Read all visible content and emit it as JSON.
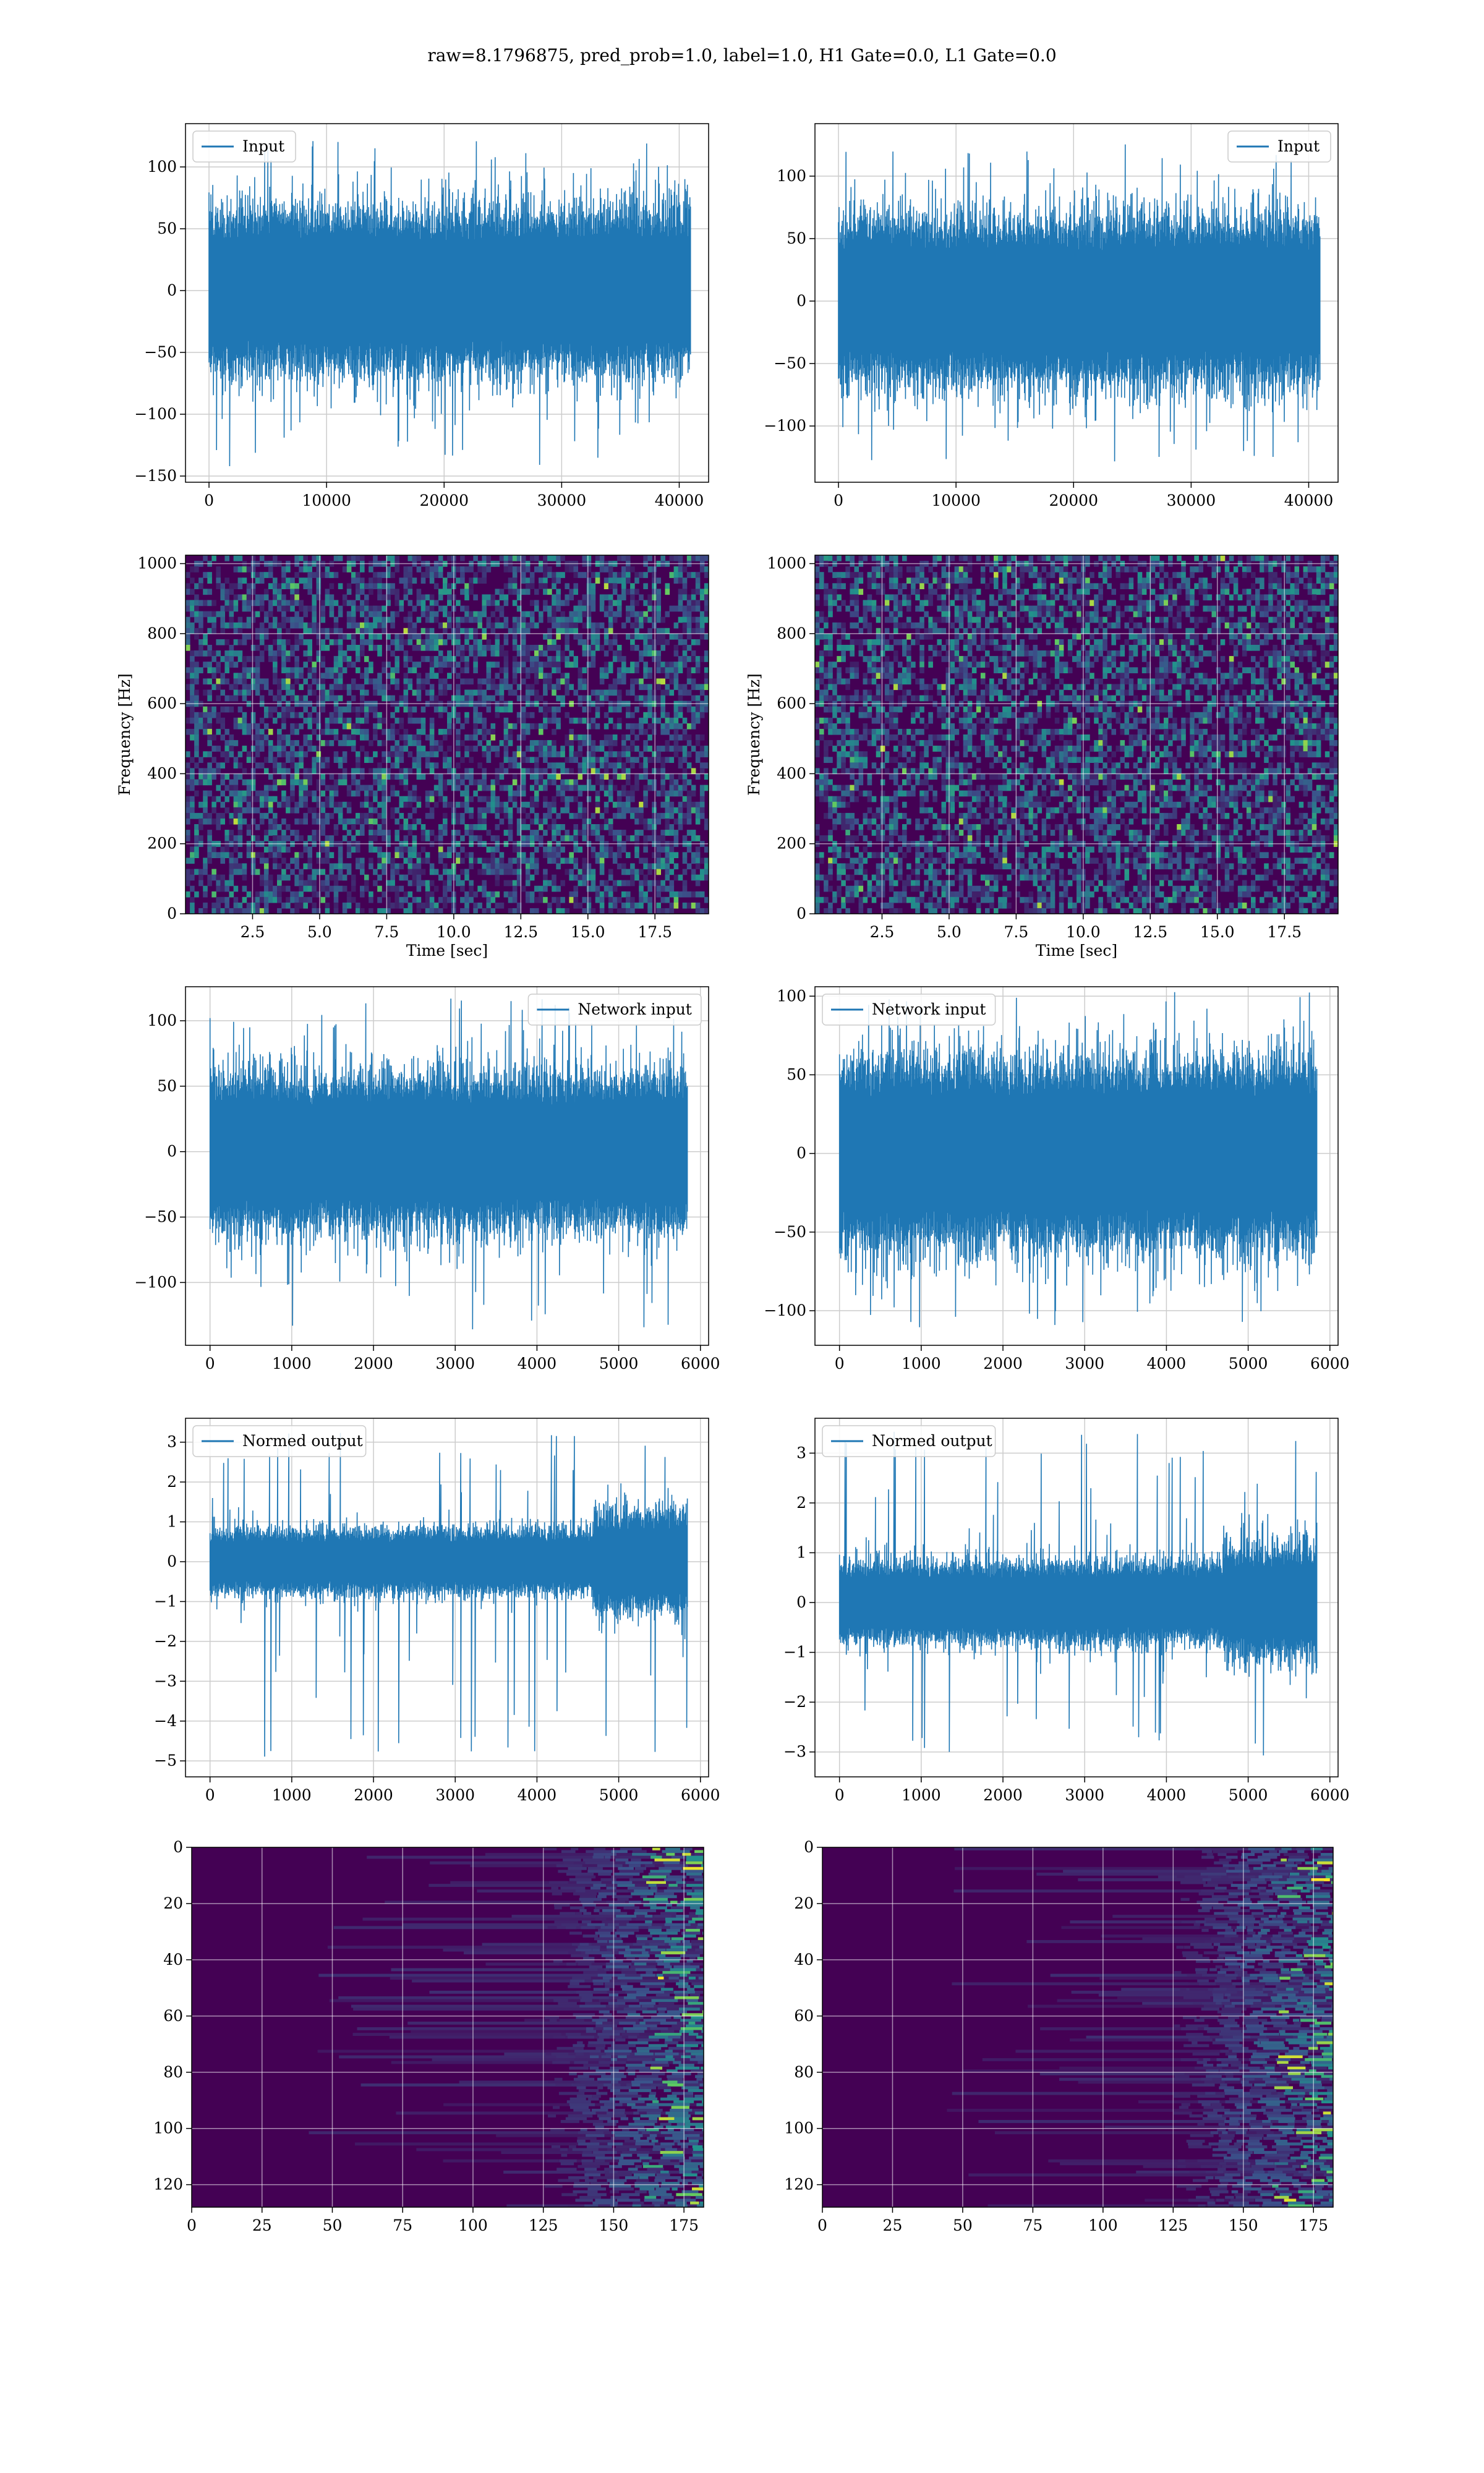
{
  "figure": {
    "suptitle": "raw=8.1796875, pred_prob=1.0, label=1.0, H1 Gate=0.0, L1 Gate=0.0"
  },
  "colors": {
    "line": "#1f77b4",
    "grid": "#cccccc",
    "heat_low": "#440154",
    "heat_mid": "#21918c",
    "heat_high": "#fde725"
  },
  "chart_data": [
    {
      "id": "input-h1",
      "type": "line",
      "series": [
        {
          "name": "Input"
        }
      ],
      "legend": "upper-left",
      "xlim": [
        -2000,
        42500
      ],
      "ylim": [
        -155,
        135
      ],
      "xticks": [
        0,
        10000,
        20000,
        30000,
        40000
      ],
      "yticks": [
        -150,
        -100,
        -50,
        0,
        50,
        100
      ],
      "signal": {
        "n": 40960,
        "x_start": 0,
        "x_end": 40960,
        "amp_typical": 62,
        "amp_peak": 122,
        "amp_min": -143
      },
      "grid": true
    },
    {
      "id": "input-l1",
      "type": "line",
      "series": [
        {
          "name": "Input"
        }
      ],
      "legend": "upper-right",
      "xlim": [
        -2000,
        42500
      ],
      "ylim": [
        -145,
        142
      ],
      "xticks": [
        0,
        10000,
        20000,
        30000,
        40000
      ],
      "yticks": [
        -100,
        -50,
        0,
        50,
        100
      ],
      "signal": {
        "n": 40960,
        "x_start": 0,
        "x_end": 40960,
        "amp_typical": 62,
        "amp_peak": 130,
        "amp_min": -130
      },
      "grid": true
    },
    {
      "id": "spectrogram-h1",
      "type": "heatmap",
      "xlabel": "Time [sec]",
      "ylabel": "Frequency [Hz]",
      "xlim": [
        0,
        19.5
      ],
      "ylim": [
        0,
        1024
      ],
      "xticks": [
        2.5,
        5.0,
        7.5,
        10.0,
        12.5,
        15.0,
        17.5
      ],
      "xtick_labels": [
        "2.5",
        "5.0",
        "7.5",
        "10.0",
        "12.5",
        "15.0",
        "17.5"
      ],
      "yticks": [
        0,
        200,
        400,
        600,
        800,
        1000
      ],
      "grid": true
    },
    {
      "id": "spectrogram-l1",
      "type": "heatmap",
      "xlabel": "Time [sec]",
      "ylabel": "Frequency [Hz]",
      "xlim": [
        0,
        19.5
      ],
      "ylim": [
        0,
        1024
      ],
      "xticks": [
        2.5,
        5.0,
        7.5,
        10.0,
        12.5,
        15.0,
        17.5
      ],
      "xtick_labels": [
        "2.5",
        "5.0",
        "7.5",
        "10.0",
        "12.5",
        "15.0",
        "17.5"
      ],
      "yticks": [
        0,
        200,
        400,
        600,
        800,
        1000
      ],
      "grid": true
    },
    {
      "id": "network-input-h1",
      "type": "line",
      "series": [
        {
          "name": "Network input"
        }
      ],
      "legend": "upper-right",
      "xlim": [
        -300,
        6100
      ],
      "ylim": [
        -148,
        126
      ],
      "xticks": [
        0,
        1000,
        2000,
        3000,
        4000,
        5000,
        6000
      ],
      "yticks": [
        -100,
        -50,
        0,
        50,
        100
      ],
      "signal": {
        "n": 5840,
        "x_start": 0,
        "x_end": 5840,
        "amp_typical": 55,
        "amp_peak": 118,
        "amp_min": -136
      },
      "grid": true
    },
    {
      "id": "network-input-l1",
      "type": "line",
      "series": [
        {
          "name": "Network input"
        }
      ],
      "legend": "upper-left",
      "xlim": [
        -300,
        6100
      ],
      "ylim": [
        -122,
        106
      ],
      "xticks": [
        0,
        1000,
        2000,
        3000,
        4000,
        5000,
        6000
      ],
      "yticks": [
        -100,
        -50,
        0,
        50,
        100
      ],
      "signal": {
        "n": 5840,
        "x_start": 0,
        "x_end": 5840,
        "amp_typical": 55,
        "amp_peak": 103,
        "amp_min": -113
      },
      "grid": true
    },
    {
      "id": "normed-output-h1",
      "type": "line",
      "series": [
        {
          "name": "Normed output"
        }
      ],
      "legend": "upper-left",
      "xlim": [
        -300,
        6100
      ],
      "ylim": [
        -5.4,
        3.6
      ],
      "xticks": [
        0,
        1000,
        2000,
        3000,
        4000,
        5000,
        6000
      ],
      "yticks": [
        -5,
        -4,
        -3,
        -2,
        -1,
        0,
        1,
        2,
        3
      ],
      "signal": {
        "n": 5840,
        "x_start": 0,
        "x_end": 5840,
        "amp_typical": 0.75,
        "burst_start": 4700,
        "burst_amp": 1.6,
        "amp_peak": 3.3,
        "amp_min": -4.9
      },
      "grid": true
    },
    {
      "id": "normed-output-l1",
      "type": "line",
      "series": [
        {
          "name": "Normed output"
        }
      ],
      "legend": "upper-left",
      "xlim": [
        -300,
        6100
      ],
      "ylim": [
        -3.5,
        3.7
      ],
      "xticks": [
        0,
        1000,
        2000,
        3000,
        4000,
        5000,
        6000
      ],
      "yticks": [
        -3,
        -2,
        -1,
        0,
        1,
        2,
        3
      ],
      "signal": {
        "n": 5840,
        "x_start": 0,
        "x_end": 5840,
        "amp_typical": 0.75,
        "burst_start": 4700,
        "burst_amp": 1.4,
        "amp_peak": 3.5,
        "amp_min": -3.1
      },
      "grid": true
    },
    {
      "id": "feature-map-h1",
      "type": "heatmap",
      "xlim": [
        0,
        182
      ],
      "ylim": [
        128,
        0
      ],
      "xticks": [
        0,
        25,
        50,
        75,
        100,
        125,
        150,
        175
      ],
      "yticks": [
        0,
        20,
        40,
        60,
        80,
        100,
        120
      ],
      "rows": 128,
      "cols": 182,
      "active_from_col": 125,
      "grid": true
    },
    {
      "id": "feature-map-l1",
      "type": "heatmap",
      "xlim": [
        0,
        182
      ],
      "ylim": [
        128,
        0
      ],
      "xticks": [
        0,
        25,
        50,
        75,
        100,
        125,
        150,
        175
      ],
      "yticks": [
        0,
        20,
        40,
        60,
        80,
        100,
        120
      ],
      "rows": 128,
      "cols": 182,
      "active_from_col": 125,
      "grid": true
    }
  ]
}
